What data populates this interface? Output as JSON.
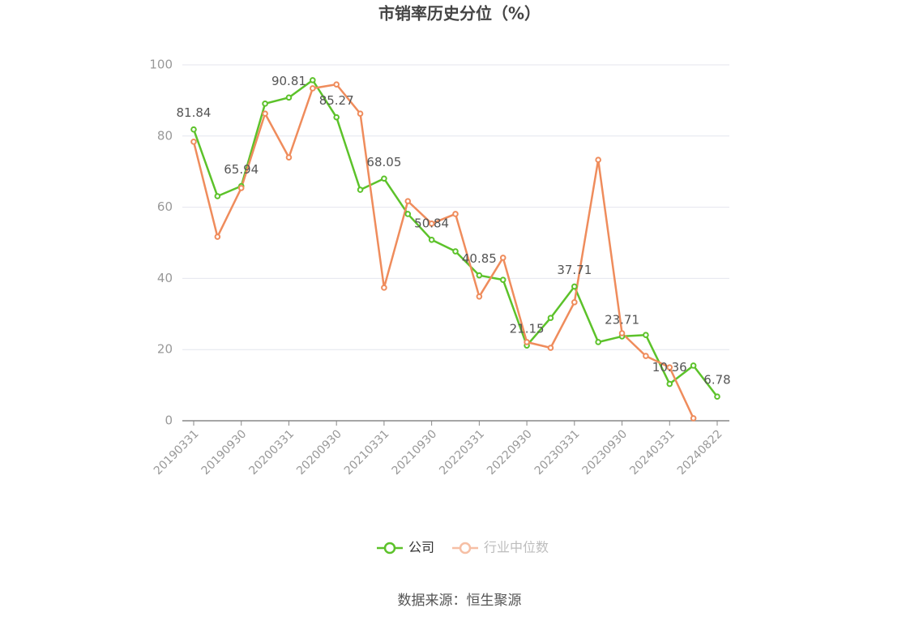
{
  "chart_data": {
    "type": "line",
    "title": "市销率历史分位（%）",
    "source": "数据来源：恒生聚源",
    "categories": [
      "20190331",
      null,
      "20190930",
      null,
      "20200331",
      null,
      "20200930",
      null,
      "20210331",
      null,
      "20210930",
      null,
      "20220331",
      null,
      "20220930",
      null,
      "20230331",
      null,
      "20230930",
      null,
      "20240331",
      null,
      "20240822"
    ],
    "series": [
      {
        "name": "公司",
        "color": "#5cc22a",
        "values": [
          81.84,
          63.1,
          65.94,
          89.1,
          90.81,
          95.7,
          85.27,
          64.9,
          68.05,
          58.1,
          50.84,
          47.6,
          40.85,
          39.6,
          21.15,
          28.9,
          37.71,
          22.1,
          23.71,
          24.1,
          10.36,
          15.5,
          6.78
        ]
      },
      {
        "name": "行业中位数",
        "color": "#ef8c5c",
        "values": [
          78.4,
          51.7,
          65.4,
          86.3,
          74.0,
          93.4,
          94.5,
          86.3,
          37.4,
          61.7,
          55.4,
          58.1,
          34.9,
          45.8,
          22.1,
          20.5,
          33.3,
          73.3,
          24.6,
          18.2,
          15.0,
          0.7,
          null
        ]
      }
    ],
    "ylim": [
      0,
      100
    ],
    "yticks": [
      0,
      20,
      40,
      60,
      80,
      100
    ],
    "grid": true
  }
}
